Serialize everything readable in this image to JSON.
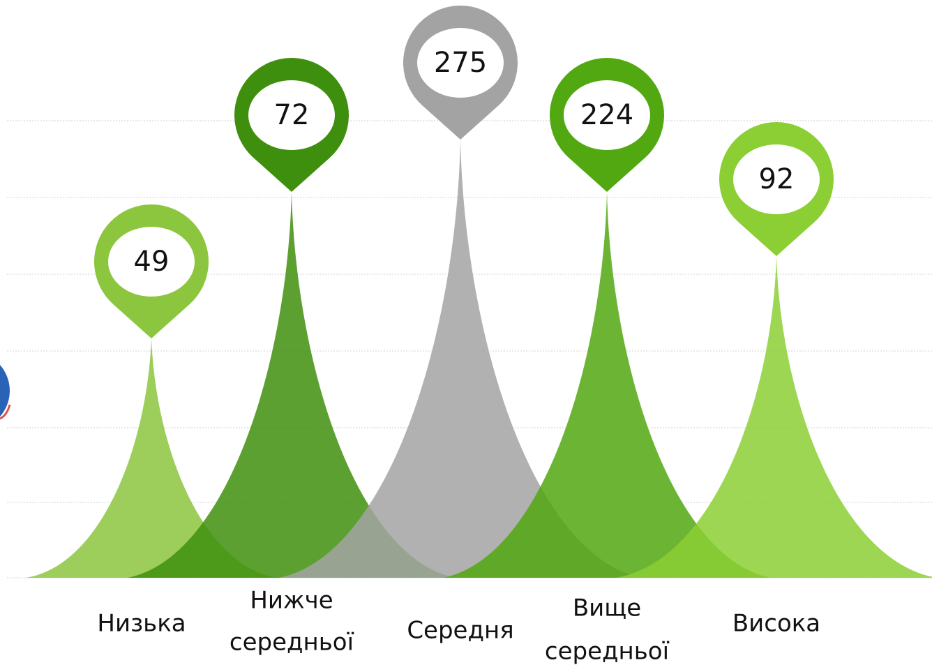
{
  "items": [
    {
      "value": 49,
      "label": [
        "Низька"
      ],
      "color": "#8cc63f"
    },
    {
      "value": 72,
      "label": [
        "Нижче",
        "середньої"
      ],
      "color": "#3f8f0e"
    },
    {
      "value": 275,
      "label": [
        "Середня"
      ],
      "color": "#a3a3a3"
    },
    {
      "value": 224,
      "label": [
        "Вище",
        "середньої"
      ],
      "color": "#52a810"
    },
    {
      "value": 92,
      "label": [
        "Висока"
      ],
      "color": "#8ccf35"
    }
  ]
}
